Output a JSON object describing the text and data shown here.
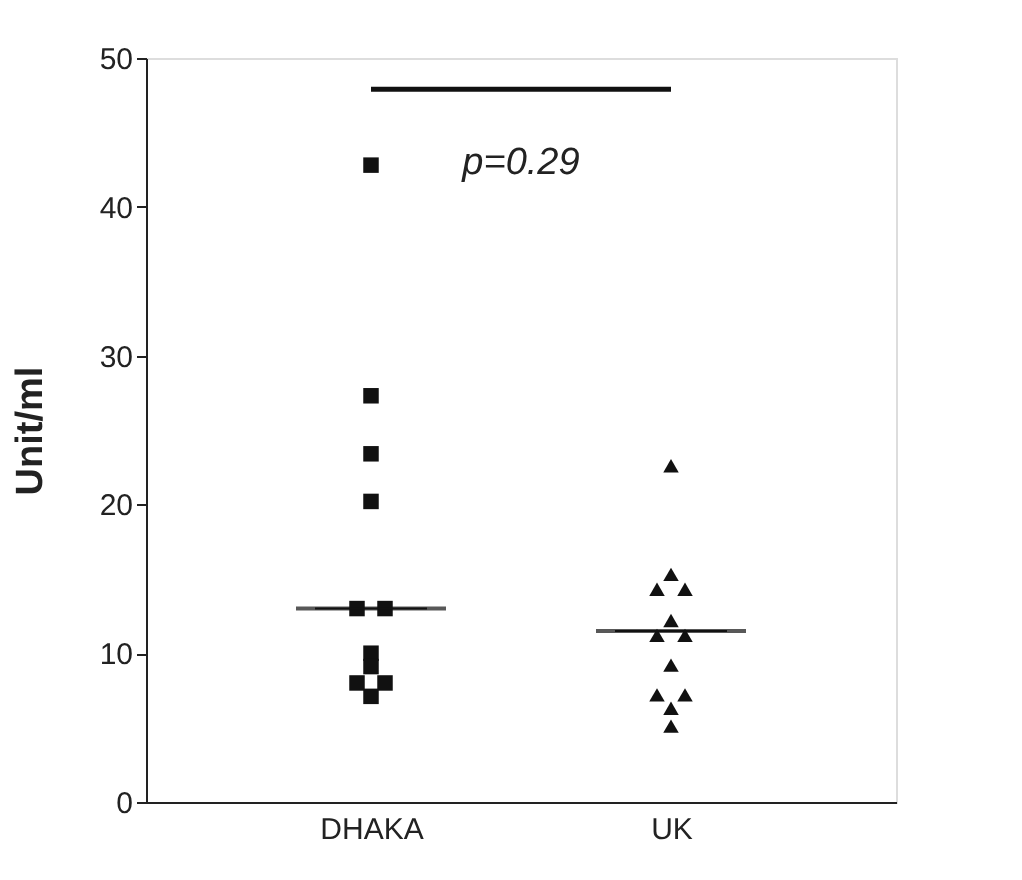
{
  "chart_data": {
    "type": "scatter",
    "ylabel": "Unit/ml",
    "categories": [
      "DHAKA",
      "UK"
    ],
    "ylim": [
      0,
      50
    ],
    "yticks": [
      0,
      10,
      20,
      30,
      40,
      50
    ],
    "grid": false,
    "annotations": [
      "p=0.29"
    ],
    "series": [
      {
        "marker": "square",
        "color": "#111111",
        "x": [
          "DHAKA",
          "DHAKA",
          "DHAKA",
          "DHAKA",
          "DHAKA",
          "DHAKA",
          "DHAKA",
          "DHAKA",
          "DHAKA",
          "DHAKA",
          "DHAKA"
        ],
        "values": [
          42.8,
          27.3,
          23.4,
          20.2,
          13.0,
          13.0,
          10.0,
          9.1,
          8.0,
          8.0,
          7.1
        ]
      },
      {
        "marker": "triangle",
        "color": "#111111",
        "x": [
          "UK",
          "UK",
          "UK",
          "UK",
          "UK",
          "UK",
          "UK",
          "UK",
          "UK",
          "UK",
          "UK",
          "UK"
        ],
        "values": [
          22.6,
          15.3,
          14.3,
          14.3,
          12.2,
          11.2,
          11.2,
          9.2,
          7.2,
          7.2,
          6.3,
          5.1
        ]
      },
      {
        "type": "box",
        "color": "#111111",
        "boxes": [
          {
            "low": 13.0,
            "q1": 13.0,
            "median": 13.0,
            "q3": 13.0,
            "high": 13.0
          },
          {
            "low": 11.5,
            "q1": 11.5,
            "median": 11.5,
            "q3": 11.5,
            "high": 11.5
          }
        ]
      },
      {
        "type": "line",
        "color": "#111111",
        "x": [
          "DHAKA",
          "UK"
        ],
        "values": [
          47.9,
          47.9
        ]
      }
    ]
  }
}
